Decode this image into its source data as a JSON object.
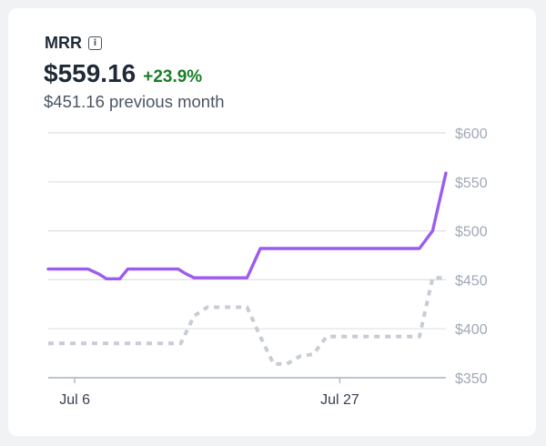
{
  "card": {
    "title": "MRR",
    "info_glyph": "i",
    "value": "$559.16",
    "change": "+23.9%",
    "previous": "$451.16 previous month"
  },
  "colors": {
    "current": "#9c5cf0",
    "previous": "#c8ccd4",
    "grid": "#dde0e6",
    "change": "#1c7c27"
  },
  "chart_data": {
    "type": "line",
    "ylim": [
      350,
      600
    ],
    "yticks": [
      350,
      400,
      450,
      500,
      550,
      600
    ],
    "ytick_labels": [
      "$350",
      "$400",
      "$450",
      "$500",
      "$550",
      "$600"
    ],
    "xlim": [
      1,
      31
    ],
    "xticks": [
      3,
      23
    ],
    "xtick_labels": [
      "Jul 6",
      "Jul 27"
    ],
    "series": [
      {
        "style": "solid",
        "x": [
          1,
          2,
          3,
          4,
          4.8,
          5.4,
          6.4,
          7,
          8,
          9,
          10,
          10.8,
          11.4,
          12,
          13,
          14,
          15,
          16,
          17,
          18,
          19,
          20,
          21,
          22,
          23,
          24,
          25,
          26,
          27,
          28,
          29,
          30,
          31
        ],
        "values": [
          461,
          461,
          461,
          461,
          456,
          451,
          451,
          461,
          461,
          461,
          461,
          461,
          456,
          452,
          452,
          452,
          452,
          452,
          482,
          482,
          482,
          482,
          482,
          482,
          482,
          482,
          482,
          482,
          482,
          482,
          482,
          500,
          559
        ]
      },
      {
        "style": "dashed",
        "x": [
          1,
          2,
          3,
          4,
          5,
          6,
          7,
          8,
          9,
          10,
          11,
          12,
          13,
          14,
          15,
          16,
          17,
          18,
          19,
          20,
          21,
          22,
          23,
          24,
          25,
          26,
          27,
          28,
          29,
          30,
          31
        ],
        "values": [
          385,
          385,
          385,
          385,
          385,
          385,
          385,
          385,
          385,
          385,
          385,
          413,
          422,
          422,
          422,
          422,
          392,
          364,
          364,
          372,
          374,
          392,
          392,
          392,
          392,
          392,
          392,
          392,
          392,
          452,
          452
        ]
      }
    ]
  }
}
